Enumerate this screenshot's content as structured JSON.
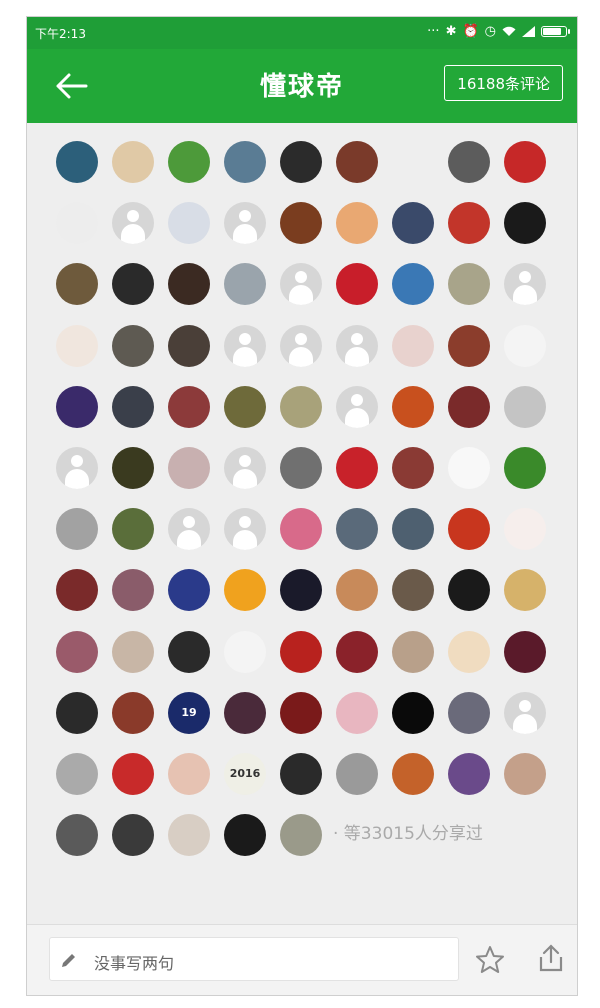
{
  "status_bar": {
    "time": "下午2:13",
    "icons": [
      "dots-icon",
      "bluetooth-icon",
      "alarm-icon",
      "clock-icon",
      "wifi-icon",
      "signal-icon",
      "battery-icon"
    ],
    "battery_level": 0.8
  },
  "app_bar": {
    "back_icon": "arrow-left-icon",
    "title": "懂球帝",
    "comments_button": "16188条评论"
  },
  "sharers": {
    "rows": [
      [
        "#2c5f7a",
        "#e0c9a6",
        "#4d9a3a",
        "#5a7c94",
        "#2b2b2b",
        "#7a3a2a",
        "#eeeeee",
        "#5c5c5c",
        "#c62828"
      ],
      [
        "#ededed",
        "placeholder",
        "#d8dde6",
        "placeholder",
        "#7a3d1f",
        "#e9a872",
        "#3a4a6a",
        "#c2352a",
        "#1a1a1a"
      ],
      [
        "#6e5a3c",
        "#2a2a2a",
        "#3b2a22",
        "#9aa4ac",
        "placeholder",
        "#c81e2a",
        "#3a78b5",
        "#a8a48a",
        "placeholder"
      ],
      [
        "#f0e6de",
        "#5e5a52",
        "#4a3f38",
        "placeholder",
        "placeholder",
        "placeholder",
        "#e8d2ce",
        "#8b3d2c",
        "#f4f4f4"
      ],
      [
        "#3a2a6a",
        "#3a3f4a",
        "#8c3a3a",
        "#6e6a3a",
        "#a8a27a",
        "placeholder",
        "#c8501e",
        "#7a2a2a",
        "#c4c4c4"
      ],
      [
        "placeholder",
        "#3a3a1f",
        "#c8b0b0",
        "placeholder",
        "#707070",
        "#c8222a",
        "#8a3a34",
        "#f8f8f8",
        "#3a8a2a"
      ],
      [
        "#a2a2a2",
        "#5a6e3a",
        "placeholder",
        "placeholder",
        "#d86a8a",
        "#5a6a7a",
        "#4e6070",
        "#c8361e",
        "#f6eeec"
      ],
      [
        "#7a2a2a",
        "#8a5c6a",
        "#2a3a8a",
        "#f0a21e",
        "#1a1a2a",
        "#c88a5a",
        "#6a5a4a",
        "#1a1a1a",
        "#d6b26a"
      ],
      [
        "#9a5a6a",
        "#c8b6a6",
        "#2a2a2a",
        "#f4f4f4",
        "#b8221e",
        "#8a222a",
        "#b8a08a",
        "#f0dcc0",
        "#5a1a2a"
      ],
      [
        "#2a2a2a",
        "#8a3a2a",
        "#1a2a6a",
        "#4a2a3a",
        "#7a1a1a",
        "#e8b6c0",
        "#0a0a0a",
        "#6a6a7a",
        "placeholder"
      ],
      [
        "#aaaaaa",
        "#c82a2a",
        "#e6c2b2",
        "#efefe6",
        "#2a2a2a",
        "#9a9a9a",
        "#c4622a",
        "#6a4a8a",
        "#c4a08a"
      ],
      [
        "#5a5a5a",
        "#3a3a3a",
        "#d8cec4",
        "#1a1a1a",
        "#9a9a8a"
      ]
    ],
    "avatar_texts": {
      "2": {
        "0": "",
        "2": ""
      },
      "9": {
        "2": "19"
      },
      "10": {
        "3": "2016"
      }
    },
    "summary": "· 等33015人分享过"
  },
  "bottom_bar": {
    "comment_placeholder": "没事写两句",
    "icons": [
      "pencil-icon",
      "star-icon",
      "share-icon"
    ]
  }
}
